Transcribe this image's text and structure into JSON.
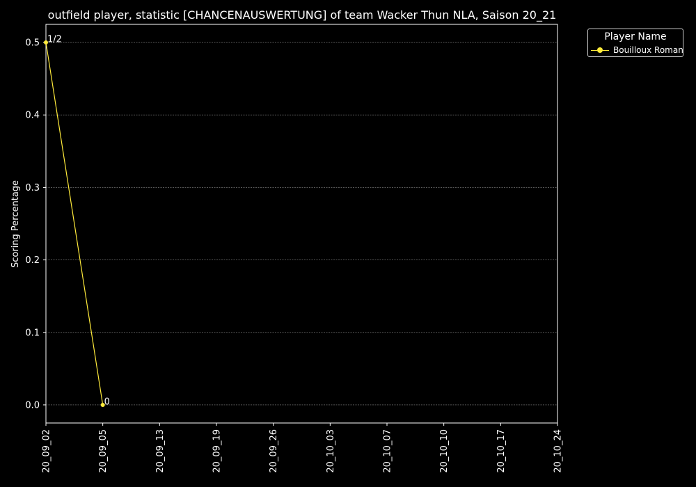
{
  "chart_data": {
    "type": "line",
    "title": "outfield player, statistic [CHANCENAUSWERTUNG] of team Wacker Thun NLA, Saison 20_21",
    "xlabel": "",
    "ylabel": "Scoring Percentage",
    "categories": [
      "20_09_02",
      "20_09_05",
      "20_09_13",
      "20_09_19",
      "20_09_26",
      "20_10_03",
      "20_10_07",
      "20_10_10",
      "20_10_17",
      "20_10_24"
    ],
    "y_ticks": [
      "0.0",
      "0.1",
      "0.2",
      "0.3",
      "0.4",
      "0.5"
    ],
    "ylim": [
      -0.025,
      0.525
    ],
    "grid": true,
    "legend_position": "outside-top-right",
    "legend_title": "Player Name",
    "series": [
      {
        "name": "Bouilloux Roman",
        "color": "#ffeb3b",
        "x": [
          "20_09_02",
          "20_09_05"
        ],
        "values": [
          0.5,
          0.0
        ],
        "point_labels": [
          "1/2",
          "0"
        ]
      }
    ]
  }
}
